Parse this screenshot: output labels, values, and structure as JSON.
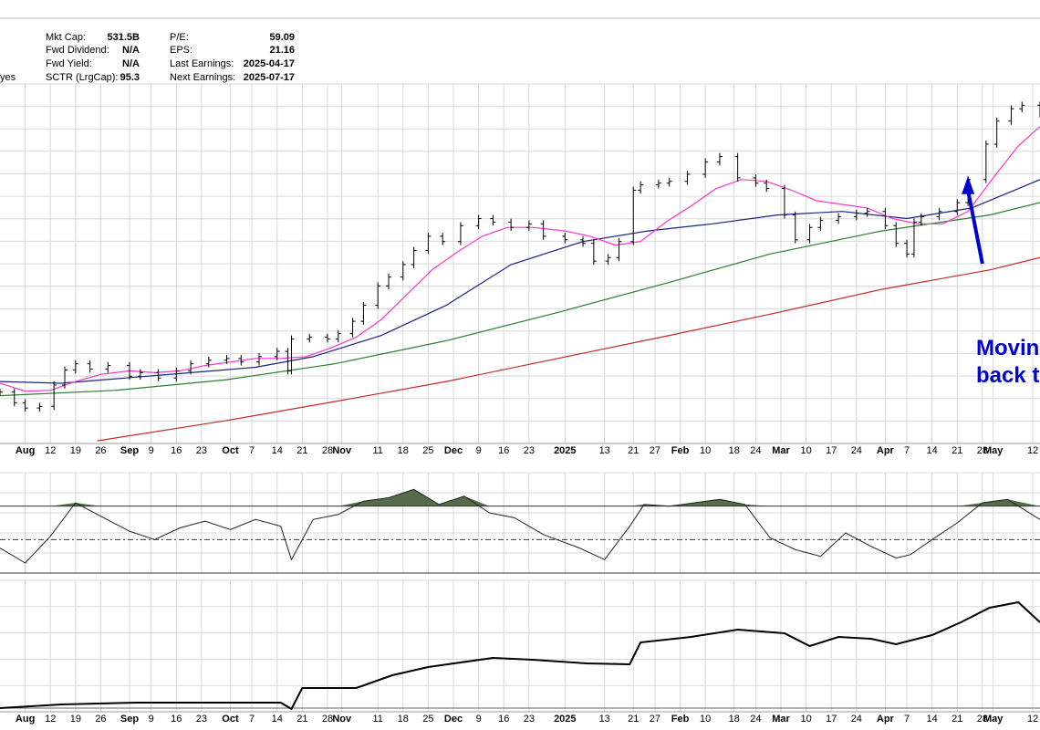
{
  "header": {
    "left_label": "yes",
    "stats": [
      {
        "label": "Mkt Cap:",
        "value": "531.5B"
      },
      {
        "label": "Fwd Dividend:",
        "value": "N/A"
      },
      {
        "label": "Fwd Yield:",
        "value": "N/A"
      },
      {
        "label": "SCTR (LrgCap):",
        "value": "95.3"
      },
      {
        "label": "P/E:",
        "value": "59.09"
      },
      {
        "label": "EPS:",
        "value": "21.16"
      },
      {
        "label": "Last Earnings:",
        "value": "2025-04-17"
      },
      {
        "label": "Next Earnings:",
        "value": "2025-07-17"
      }
    ]
  },
  "annotation": {
    "lines": [
      "Movin",
      "back t"
    ],
    "color": "#0000cc",
    "arrow_from": [
      "2025-04-28",
      425
    ],
    "arrow_to": [
      "2025-04-24",
      518
    ]
  },
  "colors": {
    "price": "#000000",
    "ma_fast": "#ff33cc",
    "ma_mid": "#1a237e",
    "ma_slow": "#2e7d32",
    "ma_long": "#c62828",
    "momentum_fill": "#556b4a",
    "grid": "#d8d8d8",
    "annotation": "#0000cc"
  },
  "chart_data": {
    "type": "line",
    "x_range": [
      "2024-07-29",
      "2025-05-14"
    ],
    "y_range_price": [
      222,
      628
    ],
    "x_tick_labels": [
      {
        "date": "2024-08-05",
        "label": "Aug"
      },
      {
        "date": "2024-08-12",
        "label": "12"
      },
      {
        "date": "2024-08-19",
        "label": "19"
      },
      {
        "date": "2024-08-26",
        "label": "26"
      },
      {
        "date": "2024-09-03",
        "label": "Sep"
      },
      {
        "date": "2024-09-09",
        "label": "9"
      },
      {
        "date": "2024-09-16",
        "label": "16"
      },
      {
        "date": "2024-09-23",
        "label": "23"
      },
      {
        "date": "2024-10-01",
        "label": "Oct"
      },
      {
        "date": "2024-10-07",
        "label": "7"
      },
      {
        "date": "2024-10-14",
        "label": "14"
      },
      {
        "date": "2024-10-21",
        "label": "21"
      },
      {
        "date": "2024-10-28",
        "label": "28"
      },
      {
        "date": "2024-11-01",
        "label": "Nov"
      },
      {
        "date": "2024-11-11",
        "label": "11"
      },
      {
        "date": "2024-11-18",
        "label": "18"
      },
      {
        "date": "2024-11-25",
        "label": "25"
      },
      {
        "date": "2024-12-02",
        "label": "Dec"
      },
      {
        "date": "2024-12-09",
        "label": "9"
      },
      {
        "date": "2024-12-16",
        "label": "16"
      },
      {
        "date": "2024-12-23",
        "label": "23"
      },
      {
        "date": "2025-01-02",
        "label": "2025"
      },
      {
        "date": "2025-01-13",
        "label": "13"
      },
      {
        "date": "2025-01-21",
        "label": "21"
      },
      {
        "date": "2025-01-27",
        "label": "27"
      },
      {
        "date": "2025-02-03",
        "label": "Feb"
      },
      {
        "date": "2025-02-10",
        "label": "10"
      },
      {
        "date": "2025-02-18",
        "label": "18"
      },
      {
        "date": "2025-02-24",
        "label": "24"
      },
      {
        "date": "2025-03-03",
        "label": "Mar"
      },
      {
        "date": "2025-03-10",
        "label": "10"
      },
      {
        "date": "2025-03-17",
        "label": "17"
      },
      {
        "date": "2025-03-24",
        "label": "24"
      },
      {
        "date": "2025-04-01",
        "label": "Apr"
      },
      {
        "date": "2025-04-07",
        "label": "7"
      },
      {
        "date": "2025-04-14",
        "label": "14"
      },
      {
        "date": "2025-04-21",
        "label": "21"
      },
      {
        "date": "2025-04-28",
        "label": "28"
      },
      {
        "date": "2025-05-01",
        "label": "May"
      },
      {
        "date": "2025-05-12",
        "label": "12"
      }
    ],
    "series": [
      {
        "key": "price",
        "x": [
          "2024-07-29",
          "2024-08-02",
          "2024-08-05",
          "2024-08-09",
          "2024-08-13",
          "2024-08-16",
          "2024-08-19",
          "2024-08-23",
          "2024-08-28",
          "2024-09-03",
          "2024-09-06",
          "2024-09-11",
          "2024-09-16",
          "2024-09-20",
          "2024-09-25",
          "2024-09-30",
          "2024-10-04",
          "2024-10-09",
          "2024-10-14",
          "2024-10-17",
          "2024-10-18",
          "2024-10-23",
          "2024-10-28",
          "2024-10-31",
          "2024-11-04",
          "2024-11-07",
          "2024-11-11",
          "2024-11-14",
          "2024-11-18",
          "2024-11-21",
          "2024-11-25",
          "2024-11-29",
          "2024-12-04",
          "2024-12-09",
          "2024-12-13",
          "2024-12-18",
          "2024-12-23",
          "2024-12-27",
          "2025-01-02",
          "2025-01-07",
          "2025-01-10",
          "2025-01-14",
          "2025-01-17",
          "2025-01-21",
          "2025-01-23",
          "2025-01-28",
          "2025-01-31",
          "2025-02-05",
          "2025-02-10",
          "2025-02-14",
          "2025-02-19",
          "2025-02-24",
          "2025-02-27",
          "2025-03-04",
          "2025-03-07",
          "2025-03-11",
          "2025-03-14",
          "2025-03-19",
          "2025-03-24",
          "2025-03-27",
          "2025-04-01",
          "2025-04-04",
          "2025-04-07",
          "2025-04-09",
          "2025-04-11",
          "2025-04-16",
          "2025-04-21",
          "2025-04-24",
          "2025-04-29",
          "2025-05-02",
          "2025-05-06",
          "2025-05-09",
          "2025-05-14"
        ],
        "values": [
          280,
          268,
          262,
          264,
          288,
          305,
          312,
          306,
          310,
          298,
          302,
          296,
          304,
          312,
          316,
          318,
          314,
          320,
          326,
          304,
          340,
          342,
          340,
          346,
          360,
          378,
          400,
          410,
          424,
          440,
          456,
          450,
          468,
          476,
          472,
          466,
          470,
          456,
          452,
          448,
          428,
          432,
          450,
          508,
          514,
          516,
          518,
          526,
          540,
          546,
          522,
          516,
          510,
          480,
          452,
          466,
          474,
          478,
          482,
          484,
          468,
          448,
          436,
          472,
          478,
          484,
          494,
          520,
          560,
          586,
          600,
          604,
          594
        ]
      },
      {
        "key": "ma_fast",
        "x": [
          "2024-07-29",
          "2024-08-05",
          "2024-08-12",
          "2024-08-19",
          "2024-08-26",
          "2024-09-03",
          "2024-09-10",
          "2024-09-17",
          "2024-09-24",
          "2024-10-01",
          "2024-10-08",
          "2024-10-15",
          "2024-10-22",
          "2024-10-29",
          "2024-11-05",
          "2024-11-12",
          "2024-11-19",
          "2024-11-26",
          "2024-12-03",
          "2024-12-10",
          "2024-12-17",
          "2024-12-24",
          "2025-01-02",
          "2025-01-09",
          "2025-01-16",
          "2025-01-23",
          "2025-01-30",
          "2025-02-06",
          "2025-02-13",
          "2025-02-20",
          "2025-02-27",
          "2025-03-06",
          "2025-03-13",
          "2025-03-20",
          "2025-03-27",
          "2025-04-03",
          "2025-04-10",
          "2025-04-17",
          "2025-04-24",
          "2025-05-01",
          "2025-05-08",
          "2025-05-14"
        ],
        "values": [
          290,
          281,
          282,
          292,
          300,
          304,
          302,
          304,
          310,
          314,
          318,
          318,
          320,
          330,
          342,
          362,
          390,
          418,
          438,
          456,
          466,
          466,
          462,
          456,
          446,
          450,
          472,
          490,
          510,
          520,
          518,
          508,
          496,
          492,
          488,
          476,
          470,
          470,
          484,
          522,
          558,
          580
        ]
      },
      {
        "key": "ma_mid",
        "x": [
          "2024-07-29",
          "2024-08-15",
          "2024-09-02",
          "2024-09-20",
          "2024-10-08",
          "2024-10-24",
          "2024-11-12",
          "2024-11-30",
          "2024-12-18",
          "2025-01-07",
          "2025-01-25",
          "2025-02-12",
          "2025-03-02",
          "2025-03-20",
          "2025-04-07",
          "2025-04-25",
          "2025-05-14"
        ],
        "values": [
          292,
          290,
          296,
          302,
          308,
          320,
          344,
          378,
          424,
          450,
          462,
          470,
          480,
          484,
          476,
          488,
          520
        ]
      },
      {
        "key": "ma_slow",
        "x": [
          "2024-07-29",
          "2024-08-30",
          "2024-09-30",
          "2024-10-30",
          "2024-11-30",
          "2024-12-31",
          "2025-01-31",
          "2025-02-28",
          "2025-03-31",
          "2025-04-30",
          "2025-05-14"
        ],
        "values": [
          276,
          282,
          294,
          312,
          338,
          370,
          404,
          436,
          462,
          480,
          494
        ]
      },
      {
        "key": "ma_long",
        "x": [
          "2024-08-25",
          "2024-09-30",
          "2024-10-31",
          "2024-11-30",
          "2024-12-31",
          "2025-01-31",
          "2025-02-28",
          "2025-03-31",
          "2025-04-30",
          "2025-05-14"
        ],
        "values": [
          225,
          248,
          270,
          292,
          318,
          344,
          368,
          396,
          418,
          432
        ]
      },
      {
        "key": "momentum",
        "x": [
          "2024-07-29",
          "2024-08-05",
          "2024-08-12",
          "2024-08-19",
          "2024-08-26",
          "2024-09-03",
          "2024-09-10",
          "2024-09-17",
          "2024-09-24",
          "2024-10-01",
          "2024-10-08",
          "2024-10-15",
          "2024-10-18",
          "2024-10-24",
          "2024-10-31",
          "2024-11-07",
          "2024-11-14",
          "2024-11-21",
          "2024-11-28",
          "2024-12-05",
          "2024-12-12",
          "2024-12-19",
          "2024-12-27",
          "2025-01-06",
          "2025-01-13",
          "2025-01-20",
          "2025-01-24",
          "2025-01-31",
          "2025-02-07",
          "2025-02-14",
          "2025-02-21",
          "2025-02-28",
          "2025-03-07",
          "2025-03-14",
          "2025-03-21",
          "2025-03-28",
          "2025-04-04",
          "2025-04-08",
          "2025-04-14",
          "2025-04-21",
          "2025-04-28",
          "2025-05-05",
          "2025-05-14"
        ],
        "values": [
          45,
          36,
          52,
          72,
          64,
          55,
          50,
          57,
          61,
          56,
          62,
          58,
          38,
          62,
          65,
          73,
          75,
          80,
          71,
          76,
          66,
          63,
          53,
          45,
          38,
          58,
          71,
          70,
          72,
          74,
          71,
          51,
          44,
          40,
          54,
          46,
          39,
          41,
          50,
          60,
          72,
          74,
          62
        ]
      },
      {
        "key": "relative",
        "x": [
          "2024-07-29",
          "2024-08-15",
          "2024-09-05",
          "2024-09-26",
          "2024-10-15",
          "2024-10-18",
          "2024-10-21",
          "2024-11-05",
          "2024-11-15",
          "2024-11-25",
          "2024-12-04",
          "2024-12-13",
          "2024-12-24",
          "2025-01-08",
          "2025-01-20",
          "2025-01-23",
          "2025-02-06",
          "2025-02-19",
          "2025-03-04",
          "2025-03-11",
          "2025-03-19",
          "2025-03-28",
          "2025-04-04",
          "2025-04-14",
          "2025-04-22",
          "2025-04-30",
          "2025-05-08",
          "2025-05-14"
        ],
        "values": [
          100,
          104,
          106,
          106,
          106,
          99,
          122,
          122,
          136,
          145,
          150,
          155,
          153,
          149,
          148,
          172,
          178,
          186,
          182,
          168,
          178,
          176,
          170,
          180,
          194,
          210,
          216,
          194
        ]
      }
    ],
    "momentum_range": [
      30,
      90
    ],
    "momentum_levels": [
      70,
      50,
      30
    ],
    "relative_range": [
      96,
      240
    ]
  }
}
